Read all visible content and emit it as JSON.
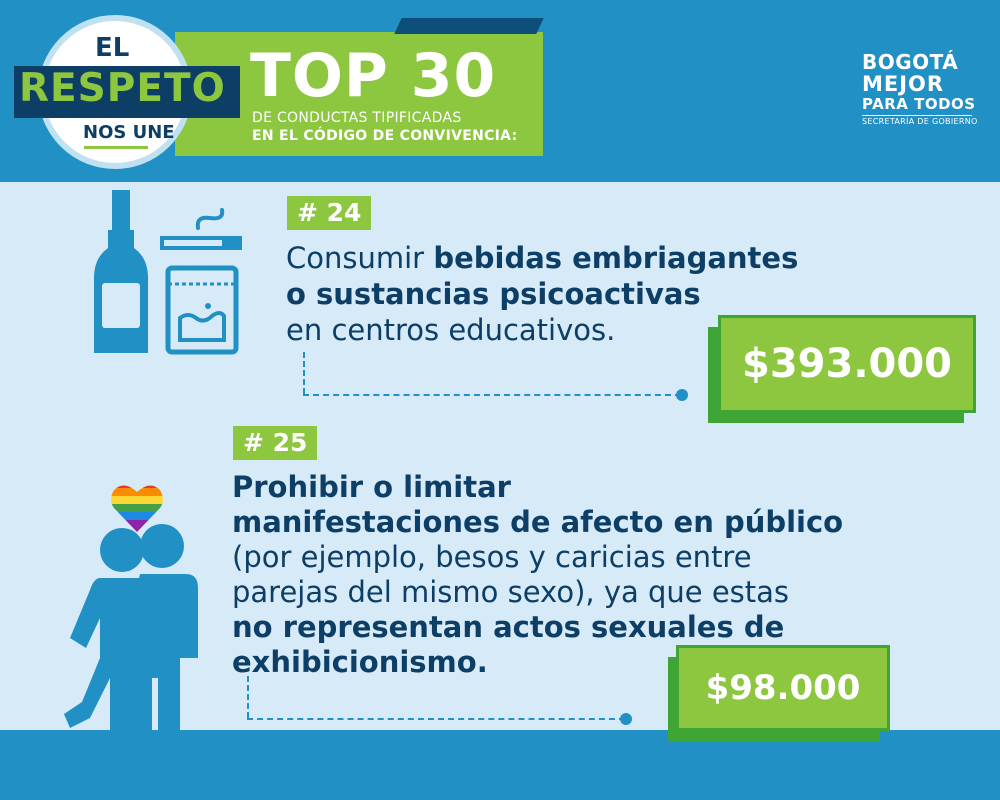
{
  "header": {
    "badge": {
      "top": "EL",
      "main": "RESPETO",
      "bottom": "NOS UNE"
    },
    "title": "TOP 30",
    "subtitle_line1": "DE CONDUCTAS TIPIFICADAS",
    "subtitle_line2": "EN EL CÓDIGO DE CONVIVENCIA:",
    "logo": {
      "line1": "BOGOTÁ",
      "line2": "MEJOR",
      "line3": "PARA TODOS",
      "line4": "SECRETARÍA DE GOBIERNO"
    }
  },
  "items": [
    {
      "number": "# 24",
      "text_normal_1": "Consumir ",
      "text_bold_1": "bebidas embriagantes",
      "text_bold_2": "o sustancias psicoactivas",
      "text_normal_2": "en centros educativos.",
      "fine": "$393.000",
      "icons": [
        "bottle-icon",
        "cigarette-icon",
        "baggie-icon"
      ]
    },
    {
      "number": "# 25",
      "text_bold_1": "Prohibir o limitar",
      "text_bold_2": "manifestaciones de afecto en público",
      "text_normal_1": "(por ejemplo, besos y caricias entre",
      "text_normal_2": "parejas del mismo sexo), ya que estas",
      "text_bold_3": "no representan actos sexuales de",
      "text_bold_4": "exhibicionismo.",
      "fine": "$98.000",
      "icons": [
        "rainbow-heart-icon",
        "embracing-couple-icon"
      ]
    }
  ],
  "colors": {
    "blue": "#2190c4",
    "navy": "#0d3e66",
    "green": "#8dc63f",
    "dark_green": "#3fa535",
    "light_panel": "#d6eaf8"
  }
}
